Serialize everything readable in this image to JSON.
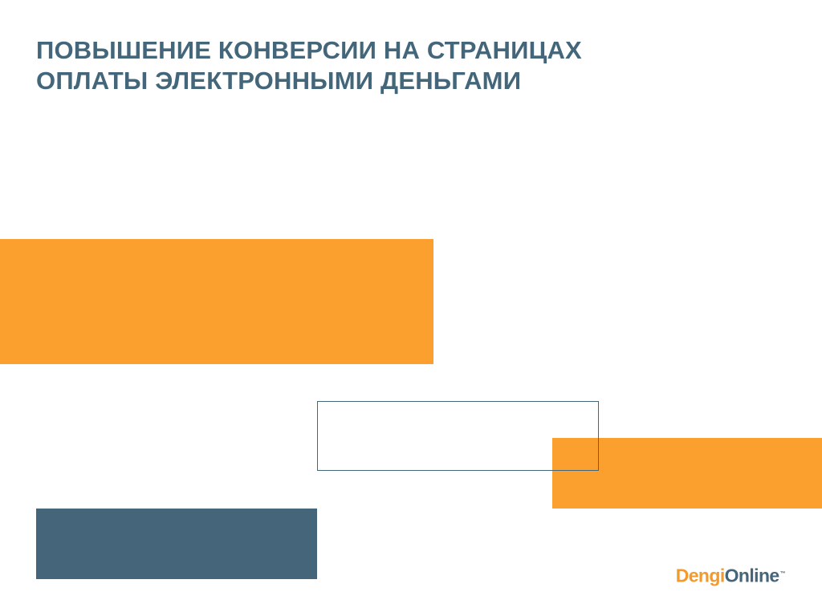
{
  "slide": {
    "title_lines": [
      "ПОВЫШЕНИЕ КОНВЕРСИИ НА СТРАНИЦАХ",
      "ОПЛАТЫ ЭЛЕКТРОННЫМИ ДЕНЬГАМИ"
    ]
  },
  "logo": {
    "part1": "Dengi",
    "part2": "Online",
    "trademark": "™"
  },
  "colors": {
    "accent_orange": "#fba02f",
    "slate_blue": "#45667a",
    "title": "#44667a",
    "background": "#ffffff"
  }
}
